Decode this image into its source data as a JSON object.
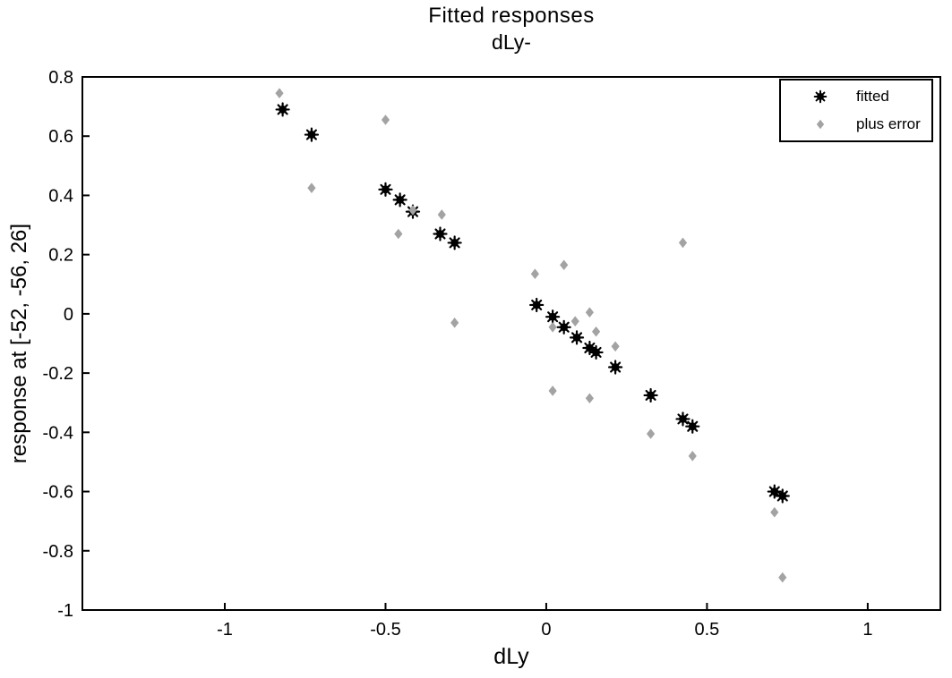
{
  "figure": {
    "background": "#ffffff",
    "axis_color": "#000000"
  },
  "chart_data": {
    "type": "scatter",
    "title": "Fitted responses",
    "subtitle": "dLy-",
    "xlabel": "dLy",
    "ylabel": "response at [-52, -56, 26]",
    "xlim": [
      -1.443,
      1.226
    ],
    "ylim": [
      -1,
      0.8
    ],
    "xticks": [
      -1,
      -0.5,
      0,
      0.5,
      1
    ],
    "yticks": [
      0.8,
      0.6,
      0.4,
      0.2,
      0,
      -0.2,
      -0.4,
      -0.6,
      -0.8,
      -1
    ],
    "grid": false,
    "legend": {
      "position": "top-right",
      "entries": [
        {
          "label": "fitted",
          "marker": "asterisk",
          "color": "#000000"
        },
        {
          "label": "plus error",
          "marker": "diamond",
          "color": "#a3a3a3"
        }
      ]
    },
    "series": [
      {
        "name": "fitted",
        "marker": "asterisk",
        "color": "#000000",
        "points": [
          [
            -0.82,
            0.69
          ],
          [
            -0.73,
            0.605
          ],
          [
            -0.5,
            0.42
          ],
          [
            -0.455,
            0.385
          ],
          [
            -0.415,
            0.345
          ],
          [
            -0.33,
            0.27
          ],
          [
            -0.285,
            0.24
          ],
          [
            -0.03,
            0.03
          ],
          [
            0.02,
            -0.01
          ],
          [
            0.055,
            -0.045
          ],
          [
            0.095,
            -0.08
          ],
          [
            0.135,
            -0.115
          ],
          [
            0.155,
            -0.13
          ],
          [
            0.215,
            -0.18
          ],
          [
            0.325,
            -0.275
          ],
          [
            0.425,
            -0.355
          ],
          [
            0.455,
            -0.38
          ],
          [
            0.71,
            -0.6
          ],
          [
            0.735,
            -0.615
          ]
        ]
      },
      {
        "name": "plus error",
        "marker": "diamond",
        "color": "#a3a3a3",
        "points": [
          [
            -0.83,
            0.745
          ],
          [
            -0.73,
            0.425
          ],
          [
            -0.5,
            0.655
          ],
          [
            -0.46,
            0.27
          ],
          [
            -0.415,
            0.35
          ],
          [
            -0.325,
            0.335
          ],
          [
            -0.285,
            -0.03
          ],
          [
            -0.035,
            0.135
          ],
          [
            0.02,
            -0.045
          ],
          [
            0.02,
            -0.26
          ],
          [
            0.055,
            0.165
          ],
          [
            0.09,
            -0.025
          ],
          [
            0.135,
            0.005
          ],
          [
            0.135,
            -0.285
          ],
          [
            0.155,
            -0.06
          ],
          [
            0.215,
            -0.11
          ],
          [
            0.325,
            -0.405
          ],
          [
            0.425,
            0.24
          ],
          [
            0.455,
            -0.48
          ],
          [
            0.71,
            -0.67
          ],
          [
            0.735,
            -0.89
          ]
        ]
      }
    ]
  }
}
